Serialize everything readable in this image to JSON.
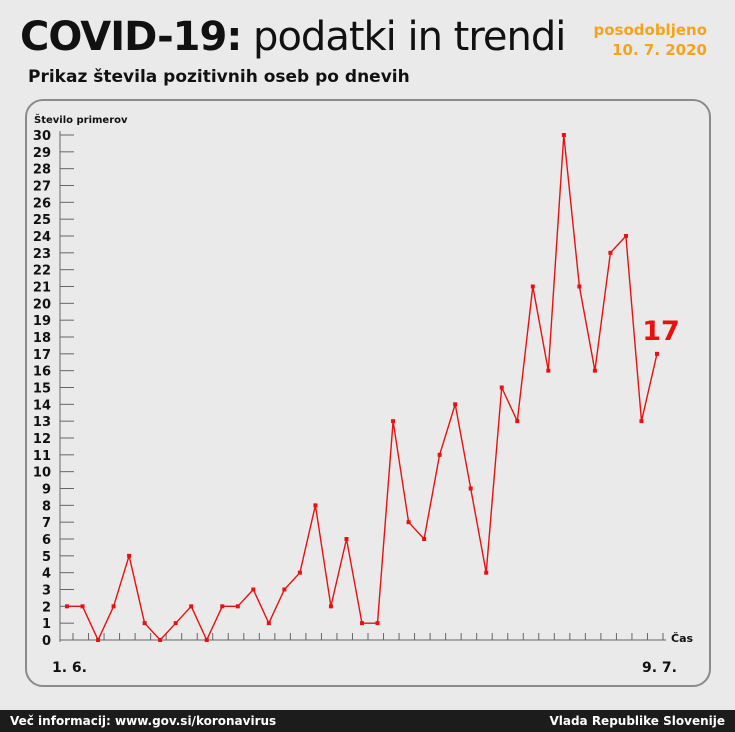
{
  "header": {
    "title_bold": "COVID-19:",
    "title_rest": " podatki in trendi",
    "updated_label": "posodobljeno",
    "updated_date": "10. 7. 2020",
    "subtitle": "Prikaz števila pozitivnih oseb po dnevih"
  },
  "colors": {
    "line": "#e8110f",
    "accent": "#f7a21b",
    "background": "#eaeaea",
    "footer": "#1c1c1c"
  },
  "chart_data": {
    "type": "line",
    "title": "Prikaz števila pozitivnih oseb po dnevih",
    "ylabel": "Število primerov",
    "xlabel": "Čas",
    "x_start_label": "1. 6.",
    "x_end_label": "9. 7.",
    "ylim": [
      0,
      30
    ],
    "y_ticks": [
      0,
      1,
      2,
      3,
      4,
      5,
      6,
      7,
      8,
      9,
      10,
      11,
      12,
      13,
      14,
      15,
      16,
      17,
      18,
      19,
      20,
      21,
      22,
      23,
      24,
      25,
      26,
      27,
      28,
      29,
      30
    ],
    "grid": false,
    "series": [
      {
        "values": [
          2,
          2,
          0,
          2,
          5,
          1,
          0,
          1,
          2,
          0,
          2,
          2,
          3,
          1,
          3,
          4,
          8,
          2,
          6,
          1,
          1,
          13,
          7,
          6,
          11,
          14,
          9,
          4,
          15,
          13,
          21,
          16,
          30,
          21,
          16,
          23,
          24,
          13,
          17
        ]
      }
    ],
    "last_value_label": "17"
  },
  "footer": {
    "left": "Več informacij: www.gov.si/koronavirus",
    "right": "Vlada Republike Slovenije"
  }
}
